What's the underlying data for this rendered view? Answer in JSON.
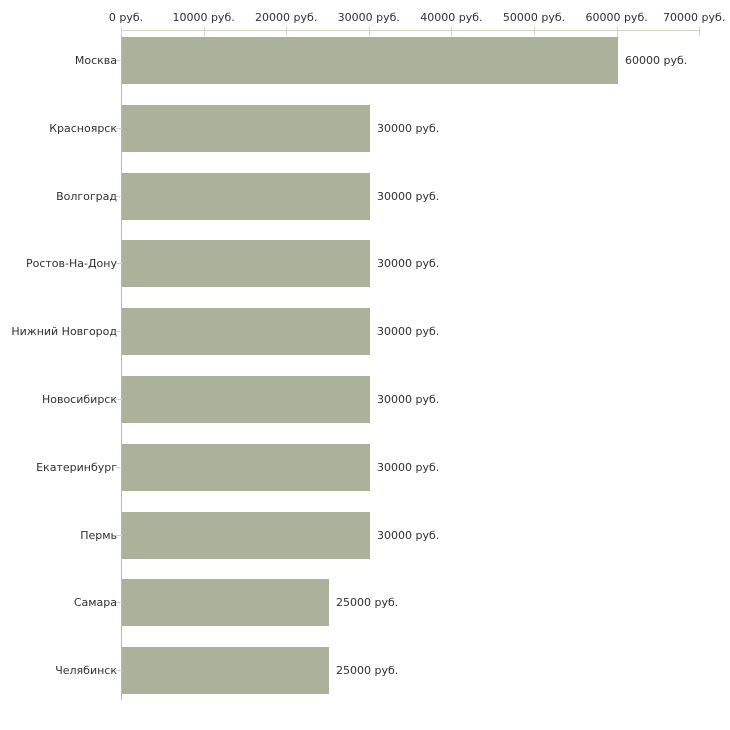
{
  "chart_data": {
    "type": "bar",
    "orientation": "horizontal",
    "title": "",
    "xlabel": "",
    "ylabel": "",
    "xlim": [
      0,
      70000
    ],
    "grid": false,
    "legend": "none",
    "categories": [
      "Москва",
      "Красноярск",
      "Волгоград",
      "Ростов-На-Дону",
      "Нижний Новгород",
      "Новосибирск",
      "Екатеринбург",
      "Пермь",
      "Самара",
      "Челябинск"
    ],
    "values": [
      60000,
      30000,
      30000,
      30000,
      30000,
      30000,
      30000,
      30000,
      25000,
      25000
    ],
    "value_labels": [
      "60000 руб.",
      "30000 руб.",
      "30000 руб.",
      "30000 руб.",
      "30000 руб.",
      "30000 руб.",
      "30000 руб.",
      "30000 руб.",
      "25000 руб.",
      "25000 руб."
    ],
    "x_tick_values": [
      0,
      10000,
      20000,
      30000,
      40000,
      50000,
      60000,
      70000
    ],
    "x_tick_labels": [
      "0 руб.",
      "10000 руб.",
      "20000 руб.",
      "30000 руб.",
      "40000 руб.",
      "50000 руб.",
      "60000 руб.",
      "70000 руб."
    ],
    "colors": {
      "bar_fill": "#abb299",
      "axis_line": "#d5d2bd",
      "baseline": "#b9b9b9",
      "text": "#303030",
      "background": "#ffffff"
    }
  }
}
